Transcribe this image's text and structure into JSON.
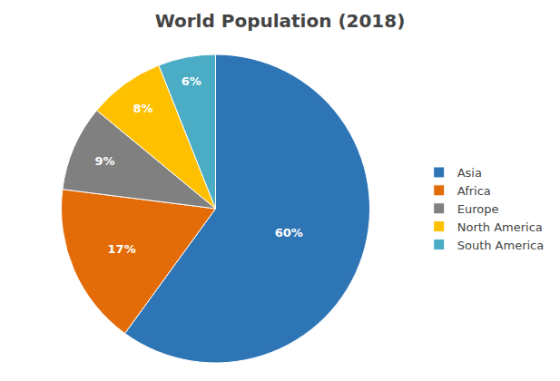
{
  "chart_data": {
    "type": "pie",
    "title": "World Population (2018)",
    "categories": [
      "Asia",
      "Africa",
      "Europe",
      "North America",
      "South America"
    ],
    "values": [
      60,
      17,
      9,
      8,
      6
    ],
    "value_labels": [
      "60%",
      "17%",
      "9%",
      "8%",
      "6%"
    ],
    "colors": [
      "#2E75B6",
      "#E36C09",
      "#808080",
      "#FFC000",
      "#4BACC6"
    ],
    "data_labels": true,
    "legend": "right"
  }
}
